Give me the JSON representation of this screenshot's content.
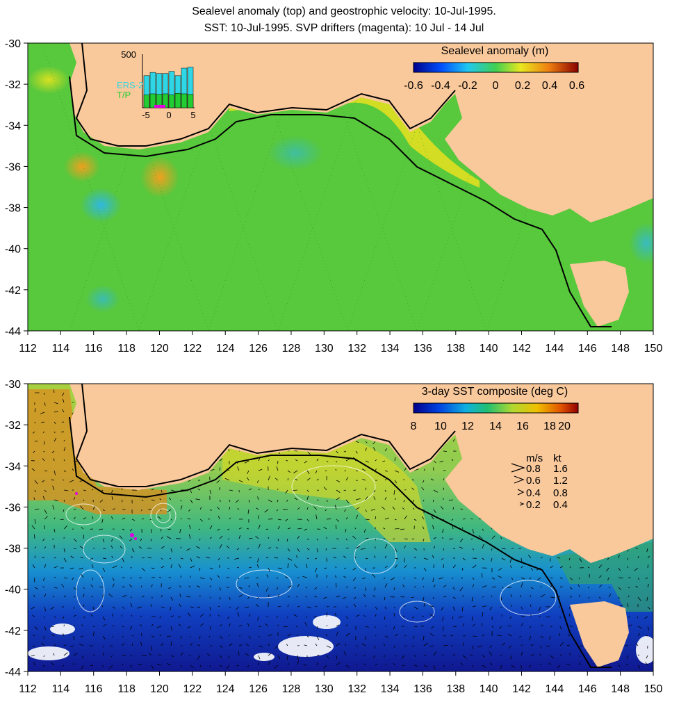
{
  "header": {
    "title_line1": "Sealevel anomaly (top) and geostrophic velocity: 10-Jul-1995.",
    "title_line2": "SST: 10-Jul-1995. SVP drifters (magenta): 10 Jul - 14 Jul"
  },
  "axes": {
    "lon_ticks": [
      "112",
      "114",
      "116",
      "118",
      "120",
      "122",
      "124",
      "126",
      "128",
      "130",
      "132",
      "134",
      "136",
      "138",
      "140",
      "142",
      "144",
      "146",
      "148",
      "150"
    ],
    "lat_ticks": [
      "-30",
      "-32",
      "-34",
      "-36",
      "-38",
      "-40",
      "-42",
      "-44"
    ]
  },
  "top_panel": {
    "colorbar_title": "Sealevel anomaly (m)",
    "colorbar_labels": [
      "-0.6",
      "-0.4",
      "-0.2",
      "0",
      "0.2",
      "0.4",
      "0.6"
    ],
    "inset": {
      "y_max_label": "500",
      "x_labels": [
        "-5",
        "0",
        "5"
      ],
      "legend_ers": "ERS-2",
      "legend_tp": "T/P",
      "ers_color": "#2fd6e6",
      "tp_color": "#22cc33",
      "bars_ers": [
        300,
        330,
        320,
        320,
        340,
        300,
        370,
        380
      ],
      "bars_tp": [
        120,
        130,
        125,
        130,
        120,
        135,
        130,
        125
      ]
    }
  },
  "bottom_panel": {
    "colorbar_title": "3-day SST composite (deg C)",
    "colorbar_labels": [
      "8",
      "10",
      "12",
      "14",
      "16",
      "18",
      "20"
    ],
    "velocity_legend": {
      "header_ms": "m/s",
      "header_kt": "kt",
      "rows": [
        {
          "ms": "0.8",
          "kt": "1.6"
        },
        {
          "ms": "0.6",
          "kt": "1.2"
        },
        {
          "ms": "0.4",
          "kt": "0.8"
        },
        {
          "ms": "0.2",
          "kt": "0.4"
        }
      ]
    }
  },
  "colors": {
    "land": "#f9c89b",
    "ocean_sla": "#58c83c",
    "ocean_sst_warm": "#c0d838",
    "ocean_sst_cold": "#1a40c0",
    "drifter": "#e000e0"
  }
}
